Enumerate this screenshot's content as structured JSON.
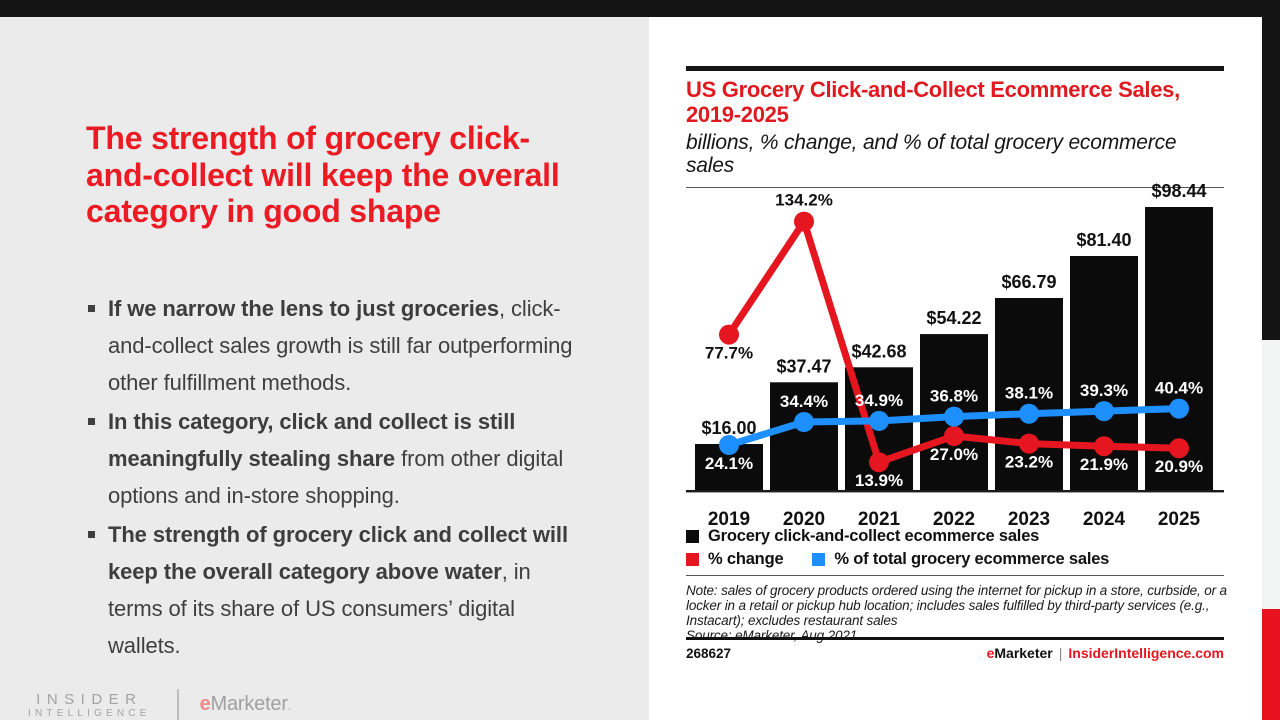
{
  "slide": {
    "headline_lines": [
      "The strength of grocery click-",
      "and-collect will keep the overall",
      "category in good shape"
    ],
    "bullets": [
      {
        "bold": "If we narrow the lens to just groceries",
        "rest": ", click-and-collect sales growth is still far outperforming other fulfillment methods."
      },
      {
        "bold": "In this category, click and collect is still meaningfully stealing share",
        "rest": " from other digital options and in-store shopping."
      },
      {
        "bold": "The strength of grocery click and collect will keep the overall category above water",
        "rest": ", in terms of its share of US consumers’ digital wallets."
      }
    ],
    "accent_red": "#e5161f",
    "panel_gray": "#ebebeb"
  },
  "logo": {
    "line1": "INSIDER",
    "line2": "INTELLIGENCE",
    "brand_e": "e",
    "brand_rest": "Marketer",
    "brand_mark": "."
  },
  "chart": {
    "title_lines": [
      "US Grocery Click-and-Collect Ecommerce Sales,",
      "2019-2025"
    ],
    "subtitle_lines": [
      "billions, % change, and % of total grocery ecommerce",
      "sales"
    ],
    "legend": [
      {
        "label": "Grocery click-and-collect ecommerce sales",
        "color": "#0b0b0b"
      },
      {
        "label": "% change",
        "color": "#e5161f"
      },
      {
        "label": "% of total grocery ecommerce sales",
        "color": "#1e8fff"
      }
    ],
    "note_lines": [
      "Note: sales of grocery products ordered using the internet for pickup in a store, curbside, or a",
      "locker in a retail or pickup hub location; includes sales fulfilled by third-party services (e.g.,",
      "Instacart); excludes restaurant sales",
      "Source: eMarketer, Aug 2021"
    ],
    "footer_id": "268627",
    "footer_brand_e": "e",
    "footer_brand_rest": "Marketer",
    "footer_divider": "|",
    "footer_site": "InsiderIntelligence.com"
  },
  "chart_data": {
    "type": "bar+line",
    "title": "US Grocery Click-and-Collect Ecommerce Sales, 2019-2025",
    "subtitle": "billions, % change, and % of total grocery ecommerce sales",
    "categories": [
      "2019",
      "2020",
      "2021",
      "2022",
      "2023",
      "2024",
      "2025"
    ],
    "series": [
      {
        "name": "Grocery click-and-collect ecommerce sales",
        "type": "bar",
        "unit": "billions USD",
        "values": [
          16.0,
          37.47,
          42.68,
          54.22,
          66.79,
          81.4,
          98.44
        ],
        "labels": [
          "$16.00",
          "$37.47",
          "$42.68",
          "$54.22",
          "$66.79",
          "$81.40",
          "$98.44"
        ],
        "color": "#0b0b0b"
      },
      {
        "name": "% change",
        "type": "line",
        "values": [
          77.7,
          134.2,
          13.9,
          27.0,
          23.2,
          21.9,
          20.9
        ],
        "labels": [
          "77.7%",
          "134.2%",
          "13.9%",
          "27.0%",
          "23.2%",
          "21.9%",
          "20.9%"
        ],
        "color": "#e5161f"
      },
      {
        "name": "% of total grocery ecommerce sales",
        "type": "line",
        "values": [
          24.1,
          34.4,
          34.9,
          36.8,
          38.1,
          39.3,
          40.4
        ],
        "labels": [
          "24.1%",
          "34.4%",
          "34.9%",
          "36.8%",
          "38.1%",
          "39.3%",
          "40.4%"
        ],
        "color": "#1e8fff"
      }
    ],
    "legend_position": "bottom",
    "grid": false
  }
}
